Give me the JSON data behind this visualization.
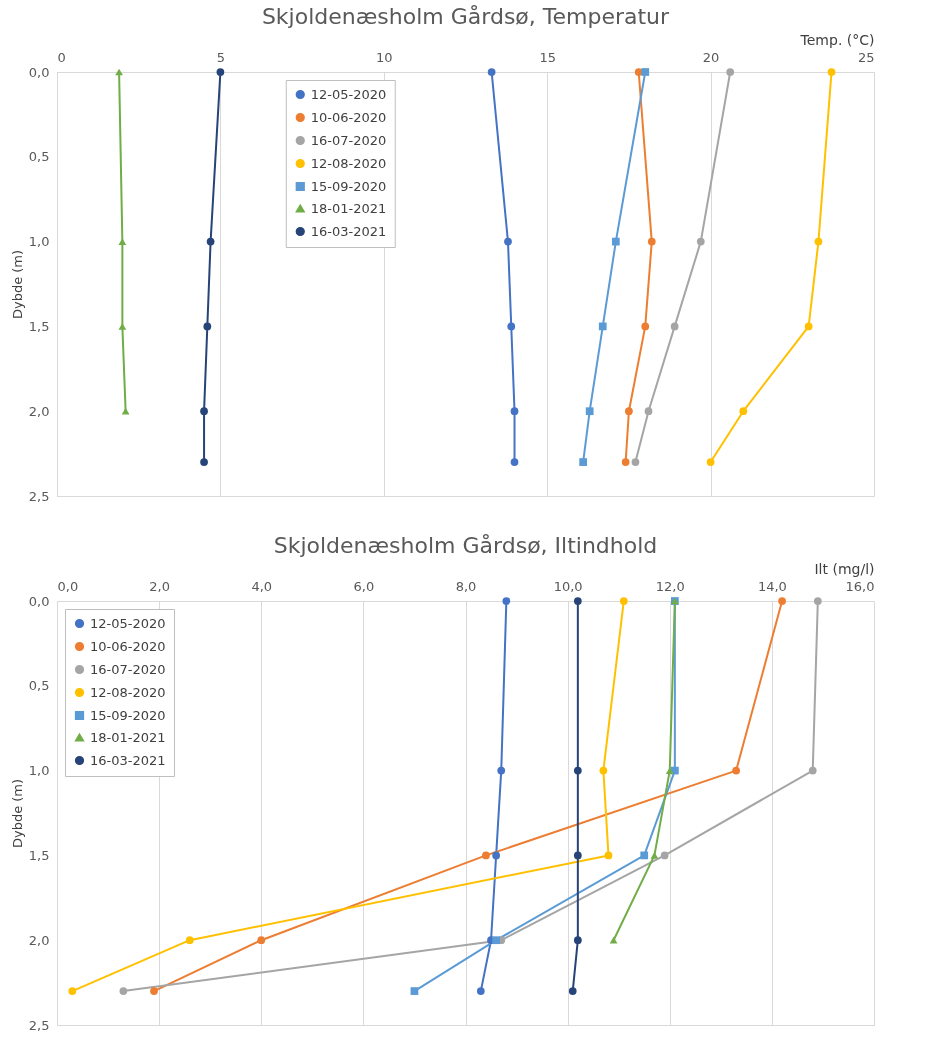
{
  "chart_data": [
    {
      "type": "line",
      "title": "Skjoldenæsholm Gårdsø, Temperatur",
      "xlabel": "Temp. (°C)",
      "ylabel": "Dybde (m)",
      "xlim": [
        0,
        25
      ],
      "xticks": [
        0,
        5,
        10,
        15,
        20,
        25
      ],
      "ylim": [
        2.5,
        0
      ],
      "yticks": [
        {
          "value": 0,
          "label": "0,0"
        },
        {
          "value": 0.5,
          "label": "0,5"
        },
        {
          "value": 1,
          "label": "1,0"
        },
        {
          "value": 1.5,
          "label": "1,5"
        },
        {
          "value": 2,
          "label": "2,0"
        },
        {
          "value": 2.5,
          "label": "2,5"
        }
      ],
      "grid": "x",
      "legend": "top",
      "line_style": "solid",
      "series": [
        {
          "name": "12-05-2020",
          "color": "#4472c4",
          "marker": "circle",
          "x": [
            13.3,
            13.8,
            13.9,
            14.0,
            14.0
          ],
          "values": [
            0,
            1,
            1.5,
            2,
            2.3
          ]
        },
        {
          "name": "10-06-2020",
          "color": "#ed7d31",
          "marker": "circle",
          "x": [
            17.8,
            18.2,
            18.0,
            17.5,
            17.4
          ],
          "values": [
            0,
            1,
            1.5,
            2,
            2.3
          ]
        },
        {
          "name": "16-07-2020",
          "color": "#a5a5a5",
          "marker": "circle",
          "x": [
            20.6,
            19.7,
            18.9,
            18.1,
            17.7
          ],
          "values": [
            0,
            1,
            1.5,
            2,
            2.3
          ]
        },
        {
          "name": "12-08-2020",
          "color": "#ffc000",
          "marker": "circle",
          "x": [
            23.7,
            23.3,
            23.0,
            21.0,
            20.0
          ],
          "values": [
            0,
            1,
            1.5,
            2,
            2.3
          ]
        },
        {
          "name": "15-09-2020",
          "color": "#5b9bd5",
          "marker": "square",
          "x": [
            18.0,
            17.1,
            16.7,
            16.3,
            16.1
          ],
          "values": [
            0,
            1,
            1.5,
            2,
            2.3
          ]
        },
        {
          "name": "18-01-2021",
          "color": "#70ad47",
          "marker": "triangle",
          "x": [
            1.9,
            2.0,
            2.0,
            2.1
          ],
          "values": [
            0,
            1,
            1.5,
            2
          ]
        },
        {
          "name": "16-03-2021",
          "color": "#264478",
          "marker": "circle",
          "x": [
            5.0,
            4.7,
            4.6,
            4.5,
            4.5
          ],
          "values": [
            0,
            1,
            1.5,
            2,
            2.3
          ]
        }
      ]
    },
    {
      "type": "line",
      "title": "Skjoldenæsholm Gårdsø, Iltindhold",
      "xlabel": "Ilt (mg/l)",
      "ylabel": "Dybde (m)",
      "xlim": [
        0,
        16
      ],
      "xticks": [
        {
          "value": 0,
          "label": "0,0"
        },
        {
          "value": 2,
          "label": "2,0"
        },
        {
          "value": 4,
          "label": "4,0"
        },
        {
          "value": 6,
          "label": "6,0"
        },
        {
          "value": 8,
          "label": "8,0"
        },
        {
          "value": 10,
          "label": "10,0"
        },
        {
          "value": 12,
          "label": "12,0"
        },
        {
          "value": 14,
          "label": "14,0"
        },
        {
          "value": 16,
          "label": "16,0"
        }
      ],
      "ylim": [
        2.5,
        0
      ],
      "yticks": [
        {
          "value": 0,
          "label": "0,0"
        },
        {
          "value": 0.5,
          "label": "0,5"
        },
        {
          "value": 1,
          "label": "1,0"
        },
        {
          "value": 1.5,
          "label": "1,5"
        },
        {
          "value": 2,
          "label": "2,0"
        },
        {
          "value": 2.5,
          "label": "2,5"
        }
      ],
      "grid": "x",
      "legend": "top left",
      "line_style": "solid",
      "series": [
        {
          "name": "12-05-2020",
          "color": "#4472c4",
          "marker": "circle",
          "x": [
            8.8,
            8.7,
            8.6,
            8.5,
            8.3
          ],
          "values": [
            0,
            1,
            1.5,
            2,
            2.3
          ]
        },
        {
          "name": "10-06-2020",
          "color": "#ed7d31",
          "marker": "circle",
          "x": [
            14.2,
            13.3,
            8.4,
            4.0,
            1.9
          ],
          "values": [
            0,
            1,
            1.5,
            2,
            2.3
          ]
        },
        {
          "name": "16-07-2020",
          "color": "#a5a5a5",
          "marker": "circle",
          "x": [
            14.9,
            14.8,
            11.9,
            8.7,
            1.3
          ],
          "values": [
            0,
            1,
            1.5,
            2,
            2.3
          ]
        },
        {
          "name": "12-08-2020",
          "color": "#ffc000",
          "marker": "circle",
          "x": [
            11.1,
            10.7,
            10.8,
            2.6,
            0.3
          ],
          "values": [
            0,
            1,
            1.5,
            2,
            2.3
          ]
        },
        {
          "name": "15-09-2020",
          "color": "#5b9bd5",
          "marker": "square",
          "x": [
            12.1,
            12.1,
            11.5,
            8.6,
            7.0
          ],
          "values": [
            0,
            1,
            1.5,
            2,
            2.3
          ]
        },
        {
          "name": "18-01-2021",
          "color": "#70ad47",
          "marker": "triangle",
          "x": [
            12.1,
            12.0,
            11.7,
            10.9
          ],
          "values": [
            0,
            1,
            1.5,
            2
          ]
        },
        {
          "name": "16-03-2021",
          "color": "#264478",
          "marker": "circle",
          "x": [
            10.2,
            10.2,
            10.2,
            10.2,
            10.1
          ],
          "values": [
            0,
            1,
            1.5,
            2,
            2.3
          ]
        }
      ]
    }
  ]
}
